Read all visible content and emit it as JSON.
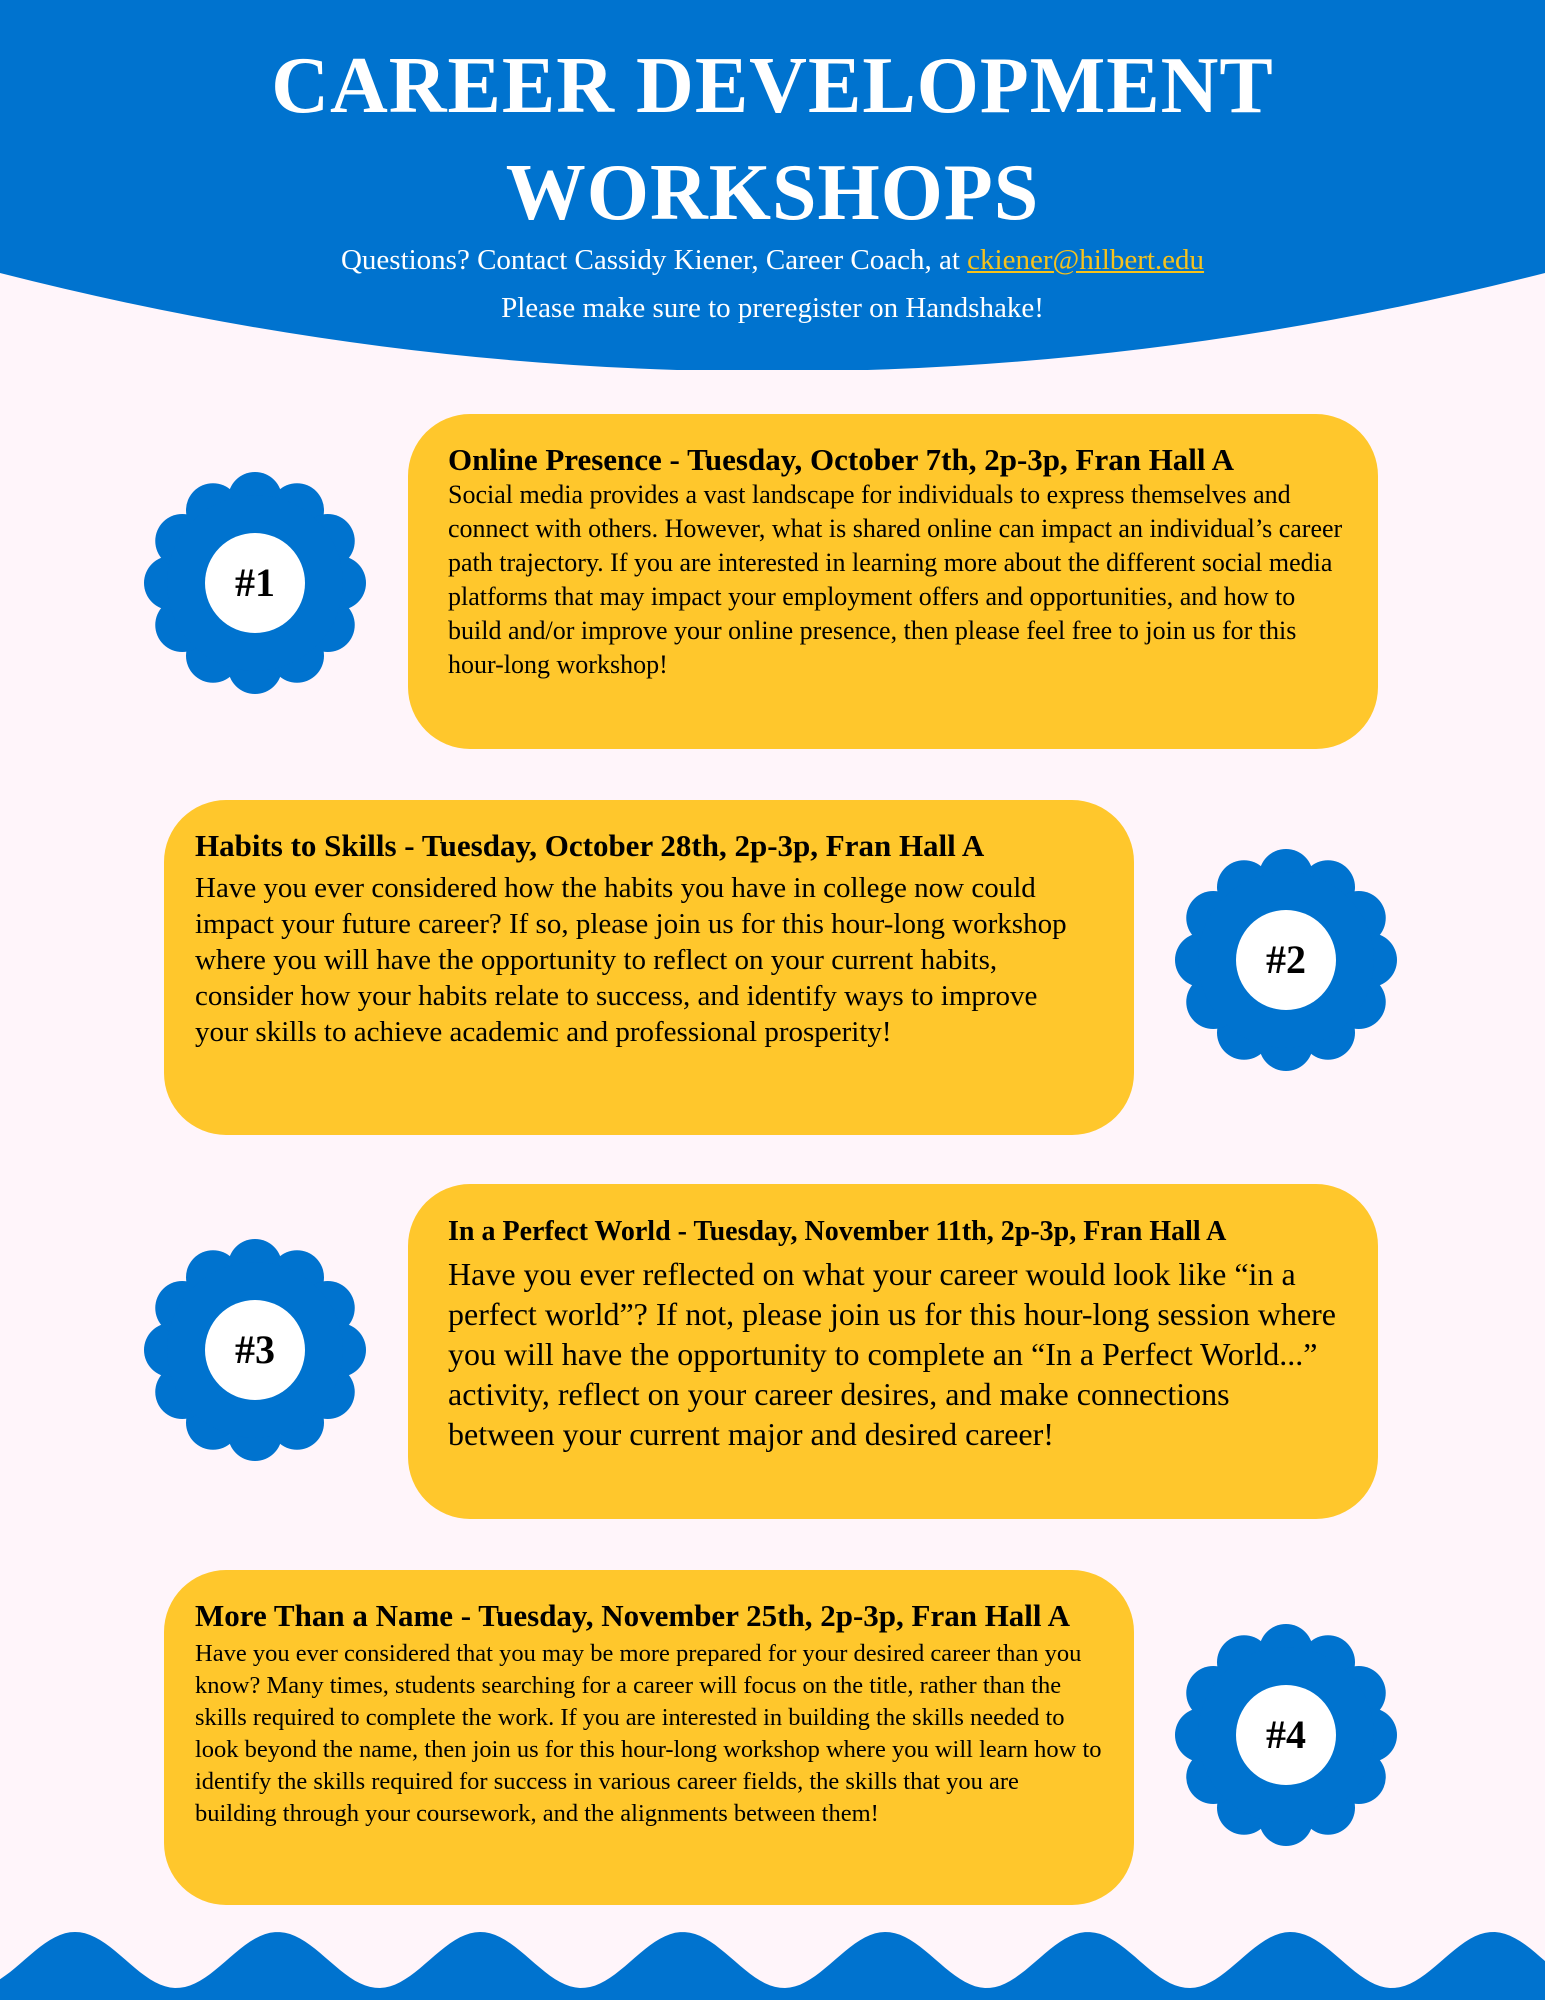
{
  "colors": {
    "blue": "#0073cf",
    "yellow": "#ffc72c",
    "background": "#fff5fa",
    "link": "#f6c21c"
  },
  "header": {
    "title_line1": "CAREER DEVELOPMENT",
    "title_line2": "WORKSHOPS",
    "contact_prefix": "Questions? Contact Cassidy Kiener, Career Coach, at ",
    "contact_email": "ckiener@hilbert.edu",
    "preregister": "Please make sure to preregister on Handshake!"
  },
  "workshops": [
    {
      "badge": "#1",
      "title": "Online Presence - Tuesday, October 7th, 2p-3p, Fran Hall A",
      "description": "Social media provides a vast landscape for individuals to express themselves and connect with others. However, what is shared online can impact an individual’s career path trajectory. If you are interested in learning more about the different social media platforms that may impact your employment offers and opportunities, and how to build and/or improve your online presence, then please feel free to join us for this hour-long workshop!"
    },
    {
      "badge": "#2",
      "title": "Habits to Skills - Tuesday, October 28th, 2p-3p, Fran Hall A",
      "description": "Have you ever considered how the habits you have in college now could impact your future career? If so, please join us for this hour-long workshop where you will have the opportunity to reflect on your current habits, consider how your habits relate to success, and identify ways to improve your skills to achieve academic and professional prosperity!"
    },
    {
      "badge": "#3",
      "title": "In a Perfect World - Tuesday, November 11th, 2p-3p, Fran Hall A",
      "description": "Have you ever reflected on what your career would look like “in a perfect world”? If not, please join us for this hour-long session where you will have the opportunity to complete an “In a Perfect World...” activity, reflect on your career desires, and make connections between your current major and desired career!"
    },
    {
      "badge": "#4",
      "title": "More Than a Name - Tuesday, November 25th, 2p-3p, Fran Hall A",
      "description": "Have you ever considered that you may be more prepared for your desired career than you know? Many times, students searching for a career will focus on the title, rather than the skills required to complete the work. If you are interested in building the skills needed to look beyond the name, then join us for this hour-long workshop where you will learn how to identify the skills required for success in various career fields, the skills that you are building through your coursework, and the alignments between them!"
    }
  ]
}
